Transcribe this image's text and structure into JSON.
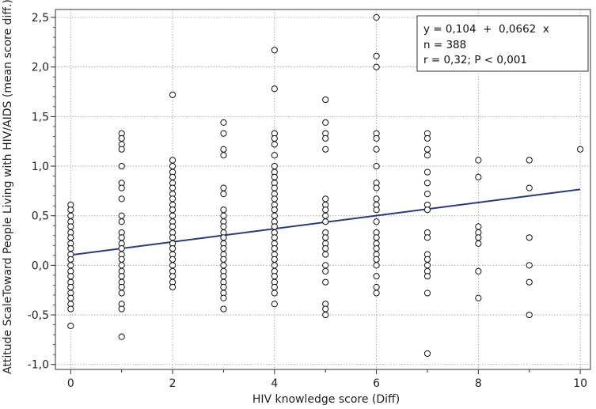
{
  "chart_data": {
    "type": "scatter",
    "xlabel": "HIV knowledge score (Diff)",
    "ylabel": "Attitude ScaleToward People Living with HIV/AIDS (mean score diff.)",
    "xlim": [
      -0.3,
      10.2
    ],
    "ylim": [
      -1.05,
      2.58
    ],
    "x_ticks": [
      0,
      2,
      4,
      6,
      8,
      10
    ],
    "x_minor_ticks": [
      1,
      3,
      5,
      7,
      9
    ],
    "y_ticks": [
      -1.0,
      -0.5,
      0.0,
      0.5,
      1.0,
      1.5,
      2.0,
      2.5
    ],
    "y_tick_labels": [
      "-1,0",
      "-0,5",
      "0,0",
      "0,5",
      "1,0",
      "1,5",
      "2,0",
      "2,5"
    ],
    "x_tick_labels": [
      "0",
      "2",
      "4",
      "6",
      "8",
      "10"
    ],
    "grid": true,
    "regression": {
      "intercept": 0.104,
      "slope": 0.0662,
      "x_range": [
        0,
        10
      ],
      "color": "#2b3a7a"
    },
    "annotation": {
      "position": "top-right",
      "lines": [
        "y = 0,104  +  0,0662  x",
        "n = 388",
        "r = 0,32; P < 0,001"
      ]
    },
    "points": [
      [
        0,
        0.61
      ],
      [
        0,
        0.56
      ],
      [
        0,
        0.5
      ],
      [
        0,
        0.44
      ],
      [
        0,
        0.39
      ],
      [
        0,
        0.33
      ],
      [
        0,
        0.28
      ],
      [
        0,
        0.22
      ],
      [
        0,
        0.17
      ],
      [
        0,
        0.11
      ],
      [
        0,
        0.06
      ],
      [
        0,
        0.0
      ],
      [
        0,
        -0.06
      ],
      [
        0,
        -0.11
      ],
      [
        0,
        -0.17
      ],
      [
        0,
        -0.22
      ],
      [
        0,
        -0.28
      ],
      [
        0,
        -0.33
      ],
      [
        0,
        -0.39
      ],
      [
        0,
        -0.44
      ],
      [
        0,
        -0.61
      ],
      [
        1,
        1.33
      ],
      [
        1,
        1.28
      ],
      [
        1,
        1.22
      ],
      [
        1,
        1.17
      ],
      [
        1,
        1.0
      ],
      [
        1,
        0.83
      ],
      [
        1,
        0.78
      ],
      [
        1,
        0.67
      ],
      [
        1,
        0.5
      ],
      [
        1,
        0.44
      ],
      [
        1,
        0.33
      ],
      [
        1,
        0.28
      ],
      [
        1,
        0.22
      ],
      [
        1,
        0.17
      ],
      [
        1,
        0.11
      ],
      [
        1,
        0.06
      ],
      [
        1,
        0.0
      ],
      [
        1,
        -0.06
      ],
      [
        1,
        -0.11
      ],
      [
        1,
        -0.17
      ],
      [
        1,
        -0.22
      ],
      [
        1,
        -0.28
      ],
      [
        1,
        -0.39
      ],
      [
        1,
        -0.44
      ],
      [
        1,
        -0.72
      ],
      [
        2,
        1.72
      ],
      [
        2,
        1.06
      ],
      [
        2,
        1.0
      ],
      [
        2,
        0.94
      ],
      [
        2,
        0.89
      ],
      [
        2,
        0.83
      ],
      [
        2,
        0.78
      ],
      [
        2,
        0.72
      ],
      [
        2,
        0.67
      ],
      [
        2,
        0.61
      ],
      [
        2,
        0.56
      ],
      [
        2,
        0.5
      ],
      [
        2,
        0.44
      ],
      [
        2,
        0.39
      ],
      [
        2,
        0.33
      ],
      [
        2,
        0.28
      ],
      [
        2,
        0.22
      ],
      [
        2,
        0.17
      ],
      [
        2,
        0.11
      ],
      [
        2,
        0.06
      ],
      [
        2,
        0.0
      ],
      [
        2,
        -0.06
      ],
      [
        2,
        -0.11
      ],
      [
        2,
        -0.17
      ],
      [
        2,
        -0.22
      ],
      [
        3,
        1.44
      ],
      [
        3,
        1.33
      ],
      [
        3,
        1.17
      ],
      [
        3,
        1.11
      ],
      [
        3,
        0.78
      ],
      [
        3,
        0.72
      ],
      [
        3,
        0.56
      ],
      [
        3,
        0.5
      ],
      [
        3,
        0.44
      ],
      [
        3,
        0.39
      ],
      [
        3,
        0.33
      ],
      [
        3,
        0.28
      ],
      [
        3,
        0.22
      ],
      [
        3,
        0.17
      ],
      [
        3,
        0.11
      ],
      [
        3,
        0.06
      ],
      [
        3,
        0.0
      ],
      [
        3,
        -0.06
      ],
      [
        3,
        -0.11
      ],
      [
        3,
        -0.17
      ],
      [
        3,
        -0.22
      ],
      [
        3,
        -0.28
      ],
      [
        3,
        -0.33
      ],
      [
        3,
        -0.44
      ],
      [
        4,
        2.17
      ],
      [
        4,
        1.78
      ],
      [
        4,
        1.33
      ],
      [
        4,
        1.28
      ],
      [
        4,
        1.22
      ],
      [
        4,
        1.11
      ],
      [
        4,
        1.0
      ],
      [
        4,
        0.94
      ],
      [
        4,
        0.89
      ],
      [
        4,
        0.83
      ],
      [
        4,
        0.78
      ],
      [
        4,
        0.72
      ],
      [
        4,
        0.67
      ],
      [
        4,
        0.61
      ],
      [
        4,
        0.56
      ],
      [
        4,
        0.5
      ],
      [
        4,
        0.44
      ],
      [
        4,
        0.39
      ],
      [
        4,
        0.33
      ],
      [
        4,
        0.28
      ],
      [
        4,
        0.22
      ],
      [
        4,
        0.17
      ],
      [
        4,
        0.11
      ],
      [
        4,
        0.06
      ],
      [
        4,
        0.0
      ],
      [
        4,
        -0.06
      ],
      [
        4,
        -0.11
      ],
      [
        4,
        -0.17
      ],
      [
        4,
        -0.22
      ],
      [
        4,
        -0.28
      ],
      [
        4,
        -0.39
      ],
      [
        5,
        1.67
      ],
      [
        5,
        1.44
      ],
      [
        5,
        1.33
      ],
      [
        5,
        1.28
      ],
      [
        5,
        1.17
      ],
      [
        5,
        0.67
      ],
      [
        5,
        0.61
      ],
      [
        5,
        0.56
      ],
      [
        5,
        0.5
      ],
      [
        5,
        0.44
      ],
      [
        5,
        0.33
      ],
      [
        5,
        0.28
      ],
      [
        5,
        0.22
      ],
      [
        5,
        0.17
      ],
      [
        5,
        0.11
      ],
      [
        5,
        0.0
      ],
      [
        5,
        -0.06
      ],
      [
        5,
        -0.17
      ],
      [
        5,
        -0.39
      ],
      [
        5,
        -0.44
      ],
      [
        5,
        -0.5
      ],
      [
        6,
        2.5
      ],
      [
        6,
        2.11
      ],
      [
        6,
        2.0
      ],
      [
        6,
        1.33
      ],
      [
        6,
        1.28
      ],
      [
        6,
        1.17
      ],
      [
        6,
        1.0
      ],
      [
        6,
        0.83
      ],
      [
        6,
        0.78
      ],
      [
        6,
        0.67
      ],
      [
        6,
        0.61
      ],
      [
        6,
        0.56
      ],
      [
        6,
        0.44
      ],
      [
        6,
        0.33
      ],
      [
        6,
        0.28
      ],
      [
        6,
        0.22
      ],
      [
        6,
        0.17
      ],
      [
        6,
        0.11
      ],
      [
        6,
        0.06
      ],
      [
        6,
        0.0
      ],
      [
        6,
        -0.11
      ],
      [
        6,
        -0.22
      ],
      [
        6,
        -0.28
      ],
      [
        7,
        1.33
      ],
      [
        7,
        1.28
      ],
      [
        7,
        1.17
      ],
      [
        7,
        1.11
      ],
      [
        7,
        0.94
      ],
      [
        7,
        0.83
      ],
      [
        7,
        0.72
      ],
      [
        7,
        0.61
      ],
      [
        7,
        0.56
      ],
      [
        7,
        0.33
      ],
      [
        7,
        0.28
      ],
      [
        7,
        0.11
      ],
      [
        7,
        0.06
      ],
      [
        7,
        0.0
      ],
      [
        7,
        -0.06
      ],
      [
        7,
        -0.11
      ],
      [
        7,
        -0.28
      ],
      [
        7,
        -0.89
      ],
      [
        8,
        1.06
      ],
      [
        8,
        0.89
      ],
      [
        8,
        0.39
      ],
      [
        8,
        0.33
      ],
      [
        8,
        0.28
      ],
      [
        8,
        0.22
      ],
      [
        8,
        -0.06
      ],
      [
        8,
        -0.33
      ],
      [
        9,
        1.06
      ],
      [
        9,
        0.78
      ],
      [
        9,
        0.28
      ],
      [
        9,
        0.0
      ],
      [
        9,
        -0.17
      ],
      [
        9,
        -0.5
      ],
      [
        10,
        1.17
      ]
    ]
  }
}
